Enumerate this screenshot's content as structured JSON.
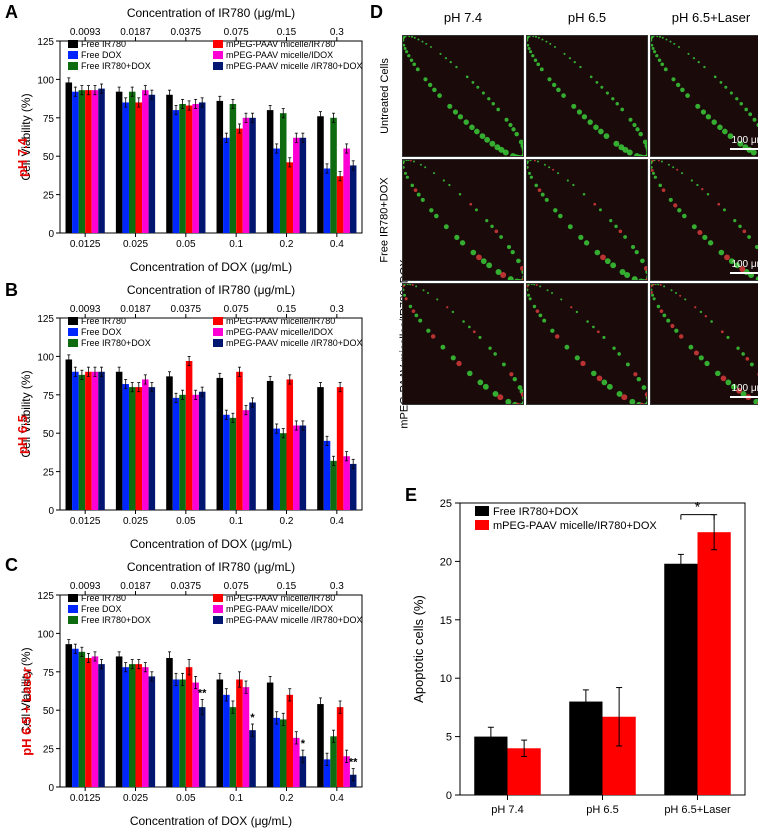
{
  "panels": {
    "A": {
      "label": "A",
      "condition": "pH 7.4"
    },
    "B": {
      "label": "B",
      "condition": "pH 6.5"
    },
    "C": {
      "label": "C",
      "condition": "pH 6.5 + Laser"
    },
    "D": {
      "label": "D"
    },
    "E": {
      "label": "E"
    }
  },
  "barcharts": {
    "type": "grouped-bar",
    "y_label": "Cell Viability (%)",
    "x_label_bottom": "Concentration of DOX (μg/mL)",
    "x_label_top": "Concentration of IR780 (μg/mL)",
    "x_ticks_bottom": [
      "0.0125",
      "0.025",
      "0.05",
      "0.1",
      "0.2",
      "0.4"
    ],
    "x_ticks_top": [
      "0.0093",
      "0.0187",
      "0.0375",
      "0.075",
      "0.15",
      "0.3"
    ],
    "y_ticks": [
      0,
      25,
      50,
      75,
      100,
      125
    ],
    "ylim": [
      0,
      125
    ],
    "series": [
      {
        "name": "Free IR780",
        "color": "#000000"
      },
      {
        "name": "Free DOX",
        "color": "#0026ff"
      },
      {
        "name": "Free IR780+DOX",
        "color": "#0f6b0f"
      },
      {
        "name": "mPEG-PAAV micelle/IR780",
        "color": "#ff0000"
      },
      {
        "name": "mPEG-PAAV micelle/IDOX",
        "color": "#ff00d4"
      },
      {
        "name": "mPEG-PAAV micelle /IR780+DOX",
        "color": "#001670"
      }
    ],
    "legend_layout": "two-column-inset",
    "bar_width": 0.13,
    "axis_color": "#000000",
    "background_color": "#ffffff",
    "tick_fontsize": 10,
    "label_fontsize": 12,
    "error_bars": true,
    "error_cap_width": 3,
    "A": {
      "values": [
        [
          98,
          92,
          93,
          93,
          93,
          94
        ],
        [
          92,
          85,
          92,
          85,
          93,
          90
        ],
        [
          90,
          80,
          84,
          83,
          84,
          85
        ],
        [
          86,
          62,
          84,
          68,
          75,
          75
        ],
        [
          80,
          55,
          78,
          46,
          62,
          62
        ],
        [
          76,
          42,
          75,
          37,
          55,
          44
        ]
      ],
      "errors": [
        [
          3,
          3,
          3,
          3,
          3,
          3
        ],
        [
          3,
          3,
          3,
          3,
          3,
          3
        ],
        [
          3,
          3,
          3,
          3,
          3,
          3
        ],
        [
          3,
          3,
          3,
          3,
          3,
          3
        ],
        [
          3,
          3,
          3,
          3,
          3,
          3
        ],
        [
          3,
          3,
          3,
          3,
          3,
          3
        ]
      ]
    },
    "B": {
      "values": [
        [
          98,
          90,
          88,
          90,
          90,
          90
        ],
        [
          90,
          82,
          80,
          80,
          85,
          80
        ],
        [
          87,
          73,
          75,
          97,
          75,
          77
        ],
        [
          86,
          62,
          60,
          90,
          65,
          70
        ],
        [
          84,
          53,
          50,
          85,
          55,
          55
        ],
        [
          80,
          45,
          32,
          80,
          35,
          30
        ]
      ],
      "errors": [
        [
          3,
          3,
          3,
          3,
          3,
          3
        ],
        [
          3,
          3,
          3,
          3,
          3,
          3
        ],
        [
          3,
          3,
          3,
          3,
          3,
          3
        ],
        [
          3,
          3,
          3,
          3,
          3,
          3
        ],
        [
          3,
          3,
          3,
          3,
          3,
          3
        ],
        [
          3,
          3,
          3,
          3,
          3,
          3
        ]
      ]
    },
    "C": {
      "values": [
        [
          93,
          90,
          88,
          84,
          85,
          80
        ],
        [
          85,
          78,
          80,
          80,
          78,
          72
        ],
        [
          84,
          70,
          70,
          78,
          68,
          52
        ],
        [
          70,
          60,
          52,
          70,
          65,
          37
        ],
        [
          68,
          45,
          44,
          60,
          32,
          20
        ],
        [
          54,
          18,
          33,
          52,
          20,
          8
        ]
      ],
      "errors": [
        [
          3,
          3,
          3,
          3,
          3,
          3
        ],
        [
          3,
          3,
          3,
          3,
          3,
          3
        ],
        [
          4,
          4,
          4,
          5,
          4,
          5
        ],
        [
          4,
          4,
          4,
          5,
          4,
          4
        ],
        [
          4,
          4,
          4,
          4,
          4,
          4
        ],
        [
          4,
          4,
          4,
          4,
          4,
          4
        ]
      ],
      "significance": [
        {
          "group_idx": 2,
          "series_idx": 5,
          "text": "**"
        },
        {
          "group_idx": 3,
          "series_idx": 5,
          "text": "*"
        },
        {
          "group_idx": 4,
          "series_idx": 5,
          "text": "*"
        },
        {
          "group_idx": 5,
          "series_idx": 5,
          "text": "**"
        }
      ]
    }
  },
  "micrographs": {
    "col_headers": [
      "pH 7.4",
      "pH 6.5",
      "pH 6.5+Laser"
    ],
    "row_headers": [
      "Untreated Cells",
      "Free IR780+DOX",
      "mPEG-PAAV micelles/IR780+DOX"
    ],
    "cell_size": 130,
    "scale_text": "100 μm",
    "scale_bar_width": 35,
    "background_color": "#1a0a0a",
    "cell_signal_colors": {
      "live": "#3bd63b",
      "dead": "#d63b3b"
    }
  },
  "apoptosis_chart": {
    "type": "grouped-bar",
    "y_label": "Apoptotic cells (%)",
    "y_ticks": [
      0,
      5,
      10,
      15,
      20,
      25
    ],
    "ylim": [
      0,
      25
    ],
    "x_ticks": [
      "pH 7.4",
      "pH 6.5",
      "pH 6.5+Laser"
    ],
    "series": [
      {
        "name": "Free IR780+DOX",
        "color": "#000000"
      },
      {
        "name": "mPEG-PAAV micelle/IR780+DOX",
        "color": "#ff0000"
      }
    ],
    "values": [
      [
        5.0,
        4.0
      ],
      [
        8.0,
        6.7
      ],
      [
        19.8,
        22.5
      ]
    ],
    "errors": [
      [
        0.8,
        0.7
      ],
      [
        1.0,
        2.5
      ],
      [
        0.8,
        1.5
      ]
    ],
    "significance": [
      {
        "group_idx": 2,
        "text": "*",
        "y": 24
      }
    ],
    "bar_width": 0.35,
    "axis_color": "#000000",
    "background_color": "#ffffff",
    "tick_fontsize": 11,
    "label_fontsize": 13
  }
}
